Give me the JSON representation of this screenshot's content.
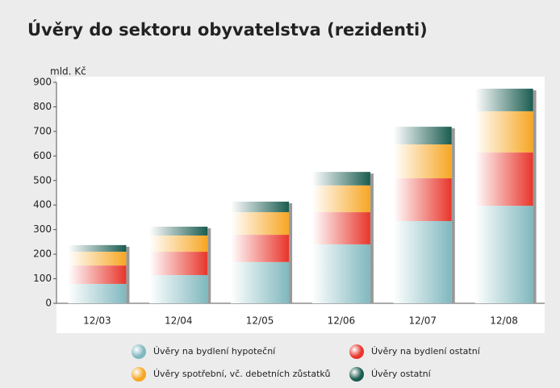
{
  "chart_data": {
    "type": "stacked_bar",
    "title": "Úvěry do sektoru obyvatelstva (rezidenti)",
    "y_axis_label": "mld. Kč",
    "categories": [
      "12/03",
      "12/04",
      "12/05",
      "12/06",
      "12/07",
      "12/08"
    ],
    "series": [
      {
        "name": "Úvěry na bydlení hypoteční",
        "color": "#7fb8be",
        "values": [
          79,
          115,
          168,
          240,
          335,
          397
        ]
      },
      {
        "name": "Úvěry na bydlení ostatní",
        "color": "#e8352b",
        "values": [
          75,
          95,
          111,
          131,
          174,
          217
        ]
      },
      {
        "name": "Úvěry spotřební, vč. debetních zůstatků",
        "color": "#f6a623",
        "values": [
          56,
          66,
          92,
          109,
          138,
          168
        ]
      },
      {
        "name": "Úvěry ostatní",
        "color": "#1a5c50",
        "values": [
          27,
          36,
          43,
          55,
          72,
          92
        ]
      }
    ],
    "ylim": [
      0,
      900
    ],
    "yticks": [
      0,
      100,
      200,
      300,
      400,
      500,
      600,
      700,
      800,
      900
    ],
    "legend": "bottom"
  }
}
